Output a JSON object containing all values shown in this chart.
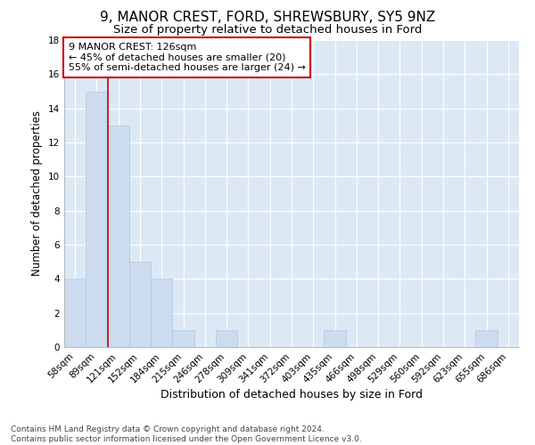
{
  "title1": "9, MANOR CREST, FORD, SHREWSBURY, SY5 9NZ",
  "title2": "Size of property relative to detached houses in Ford",
  "xlabel": "Distribution of detached houses by size in Ford",
  "ylabel": "Number of detached properties",
  "categories": [
    "58sqm",
    "89sqm",
    "121sqm",
    "152sqm",
    "184sqm",
    "215sqm",
    "246sqm",
    "278sqm",
    "309sqm",
    "341sqm",
    "372sqm",
    "403sqm",
    "435sqm",
    "466sqm",
    "498sqm",
    "529sqm",
    "560sqm",
    "592sqm",
    "623sqm",
    "655sqm",
    "686sqm"
  ],
  "values": [
    4,
    15,
    13,
    5,
    4,
    1,
    0,
    1,
    0,
    0,
    0,
    0,
    1,
    0,
    0,
    0,
    0,
    0,
    0,
    1,
    0
  ],
  "bar_color": "#ccdcee",
  "bar_edge_color": "#b0c8e0",
  "vline_x": 1.5,
  "vline_color": "#cc0000",
  "annotation_text": "9 MANOR CREST: 126sqm\n← 45% of detached houses are smaller (20)\n55% of semi-detached houses are larger (24) →",
  "annotation_box_color": "#ffffff",
  "annotation_box_edge": "#cc0000",
  "ylim": [
    0,
    18
  ],
  "yticks": [
    0,
    2,
    4,
    6,
    8,
    10,
    12,
    14,
    16,
    18
  ],
  "background_color": "#dce9f5",
  "footer_text": "Contains HM Land Registry data © Crown copyright and database right 2024.\nContains public sector information licensed under the Open Government Licence v3.0.",
  "title1_fontsize": 11,
  "title2_fontsize": 9.5,
  "xlabel_fontsize": 9,
  "ylabel_fontsize": 8.5,
  "tick_fontsize": 7.5,
  "annotation_fontsize": 8,
  "footer_fontsize": 6.5
}
